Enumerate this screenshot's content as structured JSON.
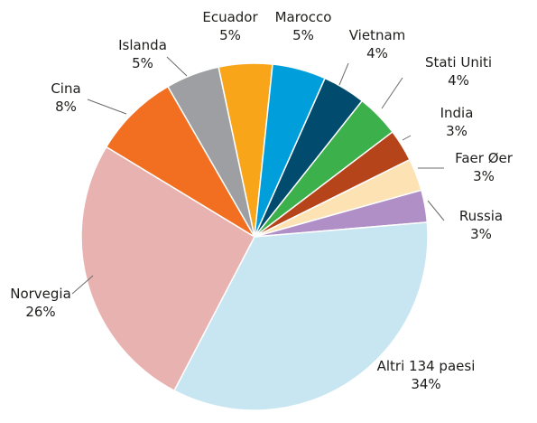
{
  "chart_data": {
    "type": "pie",
    "start_angle_deg": 0,
    "direction": "clockwise",
    "slices": [
      {
        "label": "Ecuador",
        "value": 5,
        "value_label": "5%",
        "color": "#F9A51A"
      },
      {
        "label": "Marocco",
        "value": 5,
        "value_label": "5%",
        "color": "#009EDB"
      },
      {
        "label": "Vietnam",
        "value": 4,
        "value_label": "4%",
        "color": "#004B6E"
      },
      {
        "label": "Stati Uniti",
        "value": 4,
        "value_label": "4%",
        "color": "#3CB04A"
      },
      {
        "label": "India",
        "value": 3,
        "value_label": "3%",
        "color": "#B5441B"
      },
      {
        "label": "Faer Øer",
        "value": 3,
        "value_label": "3%",
        "color": "#FDE2B4"
      },
      {
        "label": "Russia",
        "value": 3,
        "value_label": "3%",
        "color": "#B08FC7"
      },
      {
        "label": "Altri 134 paesi",
        "value": 34,
        "value_label": "34%",
        "color": "#C7E6F2"
      },
      {
        "label": "Norvegia",
        "value": 26,
        "value_label": "26%",
        "color": "#E8B2B0"
      },
      {
        "label": "Cina",
        "value": 8,
        "value_label": "8%",
        "color": "#F26F21"
      },
      {
        "label": "Islanda",
        "value": 5,
        "value_label": "5%",
        "color": "#9D9FA2"
      }
    ]
  }
}
